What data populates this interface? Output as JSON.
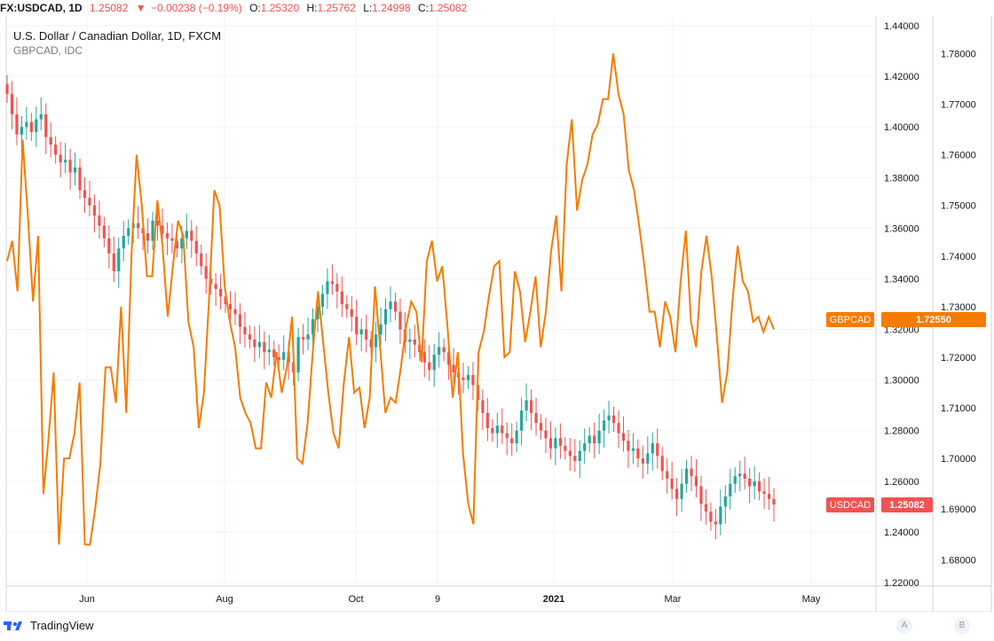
{
  "header": {
    "symbol": "FX:USDCAD, 1D",
    "last": "1.25082",
    "arrow": "▼",
    "change": "−0.00238 (−0.19%)",
    "o_label": "O:",
    "o": "1.25320",
    "h_label": "H:",
    "h": "1.25762",
    "l_label": "L:",
    "l": "1.24998",
    "c_label": "C:",
    "c": "1.25082"
  },
  "legend": {
    "main": "U.S. Dollar / Canadian Dollar, 1D, FXCM",
    "compare": "GBPCAD, IDC"
  },
  "colors": {
    "up": "#26a69a",
    "down": "#ef5350",
    "compare": "#f57c00",
    "grid": "#f0f3fa",
    "axis_text": "#131722"
  },
  "footer": {
    "brand": "TradingView",
    "scale_a": "A",
    "scale_b": "B"
  },
  "chart_data": {
    "type": "line",
    "x_ticks": [
      "Jun",
      "Aug",
      "Oct",
      "9",
      "2021",
      "Mar",
      "May"
    ],
    "y_left_ticks": [
      "1.22000",
      "1.24000",
      "1.26000",
      "1.28000",
      "1.30000",
      "1.32000",
      "1.34000",
      "1.36000",
      "1.38000",
      "1.40000",
      "1.42000",
      "1.44000"
    ],
    "y_right_ticks": [
      "1.68000",
      "1.69000",
      "1.70000",
      "1.71000",
      "1.72000",
      "1.73000",
      "1.74000",
      "1.75000",
      "1.76000",
      "1.77000",
      "1.78000"
    ],
    "left_ylim": [
      1.22,
      1.44
    ],
    "right_ylim": [
      1.6755,
      1.7855
    ],
    "series": [
      {
        "name": "USDCAD",
        "kind": "candlestick",
        "axis": "left",
        "last_label": "1.25082",
        "close": [
          1.413,
          1.405,
          1.397,
          1.4,
          1.402,
          1.398,
          1.403,
          1.405,
          1.396,
          1.393,
          1.389,
          1.386,
          1.387,
          1.382,
          1.384,
          1.375,
          1.372,
          1.369,
          1.365,
          1.361,
          1.356,
          1.35,
          1.343,
          1.352,
          1.357,
          1.36,
          1.362,
          1.36,
          1.358,
          1.355,
          1.363,
          1.361,
          1.358,
          1.356,
          1.355,
          1.352,
          1.356,
          1.359,
          1.355,
          1.35,
          1.345,
          1.34,
          1.338,
          1.336,
          1.333,
          1.33,
          1.328,
          1.326,
          1.321,
          1.318,
          1.316,
          1.313,
          1.315,
          1.311,
          1.312,
          1.309,
          1.308,
          1.311,
          1.307,
          1.303,
          1.317,
          1.316,
          1.318,
          1.324,
          1.329,
          1.334,
          1.339,
          1.338,
          1.335,
          1.33,
          1.328,
          1.325,
          1.318,
          1.32,
          1.316,
          1.313,
          1.318,
          1.322,
          1.328,
          1.331,
          1.327,
          1.32,
          1.315,
          1.316,
          1.314,
          1.311,
          1.307,
          1.304,
          1.31,
          1.313,
          1.311,
          1.306,
          1.303,
          1.301,
          1.3,
          1.302,
          1.298,
          1.292,
          1.287,
          1.281,
          1.279,
          1.282,
          1.279,
          1.277,
          1.275,
          1.28,
          1.288,
          1.292,
          1.287,
          1.283,
          1.28,
          1.277,
          1.273,
          1.277,
          1.274,
          1.272,
          1.27,
          1.268,
          1.272,
          1.275,
          1.278,
          1.275,
          1.28,
          1.284,
          1.286,
          1.283,
          1.279,
          1.276,
          1.272,
          1.273,
          1.269,
          1.267,
          1.271,
          1.275,
          1.27,
          1.264,
          1.261,
          1.257,
          1.253,
          1.259,
          1.265,
          1.262,
          1.258,
          1.251,
          1.248,
          1.244,
          1.243,
          1.25,
          1.254,
          1.259,
          1.262,
          1.263,
          1.261,
          1.258,
          1.26,
          1.256,
          1.255,
          1.253,
          1.2508
        ]
      },
      {
        "name": "GBPCAD",
        "kind": "line",
        "axis": "right",
        "last_label": "1.72550",
        "values": [
          1.739,
          1.743,
          1.733,
          1.763,
          1.748,
          1.731,
          1.744,
          1.693,
          1.704,
          1.717,
          1.683,
          1.7,
          1.7,
          1.705,
          1.715,
          1.683,
          1.683,
          1.69,
          1.699,
          1.718,
          1.718,
          1.711,
          1.73,
          1.709,
          1.74,
          1.76,
          1.75,
          1.736,
          1.736,
          1.751,
          1.742,
          1.728,
          1.738,
          1.747,
          1.744,
          1.727,
          1.722,
          1.706,
          1.713,
          1.732,
          1.753,
          1.75,
          1.734,
          1.727,
          1.722,
          1.712,
          1.709,
          1.707,
          1.702,
          1.702,
          1.715,
          1.712,
          1.721,
          1.713,
          1.718,
          1.728,
          1.7,
          1.699,
          1.707,
          1.721,
          1.733,
          1.723,
          1.713,
          1.705,
          1.702,
          1.715,
          1.724,
          1.713,
          1.714,
          1.706,
          1.712,
          1.734,
          1.722,
          1.709,
          1.712,
          1.711,
          1.718,
          1.726,
          1.731,
          1.729,
          1.719,
          1.739,
          1.743,
          1.735,
          1.738,
          1.726,
          1.712,
          1.721,
          1.701,
          1.691,
          1.687,
          1.721,
          1.725,
          1.732,
          1.738,
          1.739,
          1.72,
          1.721,
          1.737,
          1.733,
          1.723,
          1.729,
          1.736,
          1.722,
          1.729,
          1.741,
          1.748,
          1.733,
          1.758,
          1.767,
          1.749,
          1.755,
          1.758,
          1.764,
          1.766,
          1.771,
          1.771,
          1.78,
          1.772,
          1.768,
          1.757,
          1.753,
          1.746,
          1.738,
          1.729,
          1.729,
          1.722,
          1.731,
          1.728,
          1.721,
          1.735,
          1.745,
          1.727,
          1.722,
          1.737,
          1.744,
          1.736,
          1.724,
          1.711,
          1.717,
          1.731,
          1.742,
          1.735,
          1.733,
          1.727,
          1.728,
          1.725,
          1.728,
          1.7255
        ]
      }
    ]
  }
}
